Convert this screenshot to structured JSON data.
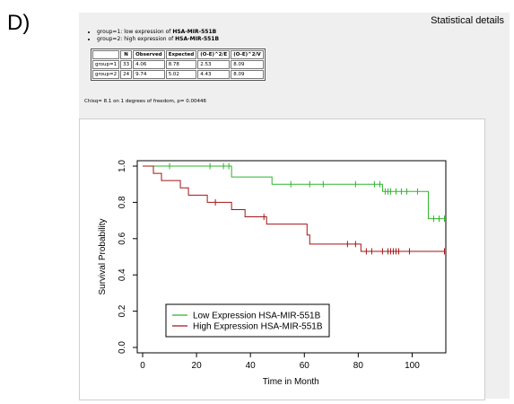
{
  "panel_label": "D)",
  "statistical_details": "Statistical details",
  "groups": [
    {
      "prefix": "group=1: low expression of ",
      "name": "HSA-MIR-551B"
    },
    {
      "prefix": "group=2: high expression of ",
      "name": "HSA-MIR-551B"
    }
  ],
  "stats_table": {
    "headers": [
      "",
      "N",
      "Observed",
      "Expected",
      "(O-E)^2/E",
      "(O-E)^2/V"
    ],
    "rows": [
      [
        "group=1",
        "33",
        "4.06",
        "8.78",
        "2.53",
        "8.09"
      ],
      [
        "group=2",
        "24",
        "9.74",
        "5.02",
        "4.43",
        "8.09"
      ]
    ]
  },
  "chisq_text": "Chisq= 8.1 on 1 degrees of freedom, p= 0.00446",
  "chart_data": {
    "type": "line",
    "xlabel": "Time in Month",
    "ylabel": "Survival Probability",
    "xlim": [
      0,
      115
    ],
    "ylim": [
      0,
      1
    ],
    "x_ticks": [
      0,
      20,
      40,
      60,
      80,
      100
    ],
    "y_ticks": [
      0.0,
      0.2,
      0.4,
      0.6,
      0.8,
      1.0
    ],
    "x_tick_labels": [
      "0",
      "20",
      "40",
      "60",
      "80",
      "100"
    ],
    "y_tick_labels": [
      "0.0",
      "0.2",
      "0.4",
      "0.6",
      "0.8",
      "1.0"
    ],
    "legend_position": "bottom-left",
    "series": [
      {
        "name": "Low Expression HSA-MIR-551B",
        "color": "#2db52d",
        "steps": [
          [
            0,
            1.0
          ],
          [
            33,
            0.94
          ],
          [
            48,
            0.9
          ],
          [
            89,
            0.86
          ],
          [
            106,
            0.71
          ],
          [
            112,
            0.71
          ]
        ],
        "censors": [
          [
            10,
            1.0
          ],
          [
            25,
            1.0
          ],
          [
            30,
            1.0
          ],
          [
            32,
            1.0
          ],
          [
            55,
            0.9
          ],
          [
            62,
            0.9
          ],
          [
            67,
            0.9
          ],
          [
            79,
            0.9
          ],
          [
            86,
            0.9
          ],
          [
            88,
            0.9
          ],
          [
            90,
            0.86
          ],
          [
            91,
            0.86
          ],
          [
            92,
            0.86
          ],
          [
            94,
            0.86
          ],
          [
            96,
            0.86
          ],
          [
            98,
            0.86
          ],
          [
            102,
            0.86
          ],
          [
            108,
            0.71
          ],
          [
            110,
            0.71
          ],
          [
            112,
            0.71
          ]
        ]
      },
      {
        "name": "High Expression HSA-MIR-551B",
        "color": "#a31515",
        "steps": [
          [
            0,
            1.0
          ],
          [
            4,
            0.96
          ],
          [
            7,
            0.92
          ],
          [
            14,
            0.88
          ],
          [
            17,
            0.84
          ],
          [
            24,
            0.8
          ],
          [
            33,
            0.76
          ],
          [
            38,
            0.72
          ],
          [
            46,
            0.68
          ],
          [
            61,
            0.62
          ],
          [
            62,
            0.57
          ],
          [
            81,
            0.53
          ],
          [
            112,
            0.53
          ]
        ],
        "censors": [
          [
            27,
            0.8
          ],
          [
            45,
            0.72
          ],
          [
            76,
            0.57
          ],
          [
            79,
            0.57
          ],
          [
            83,
            0.53
          ],
          [
            85,
            0.53
          ],
          [
            89,
            0.53
          ],
          [
            91,
            0.53
          ],
          [
            92,
            0.53
          ],
          [
            93,
            0.53
          ],
          [
            94,
            0.53
          ],
          [
            95,
            0.53
          ],
          [
            99,
            0.53
          ],
          [
            112,
            0.53
          ]
        ]
      }
    ]
  }
}
